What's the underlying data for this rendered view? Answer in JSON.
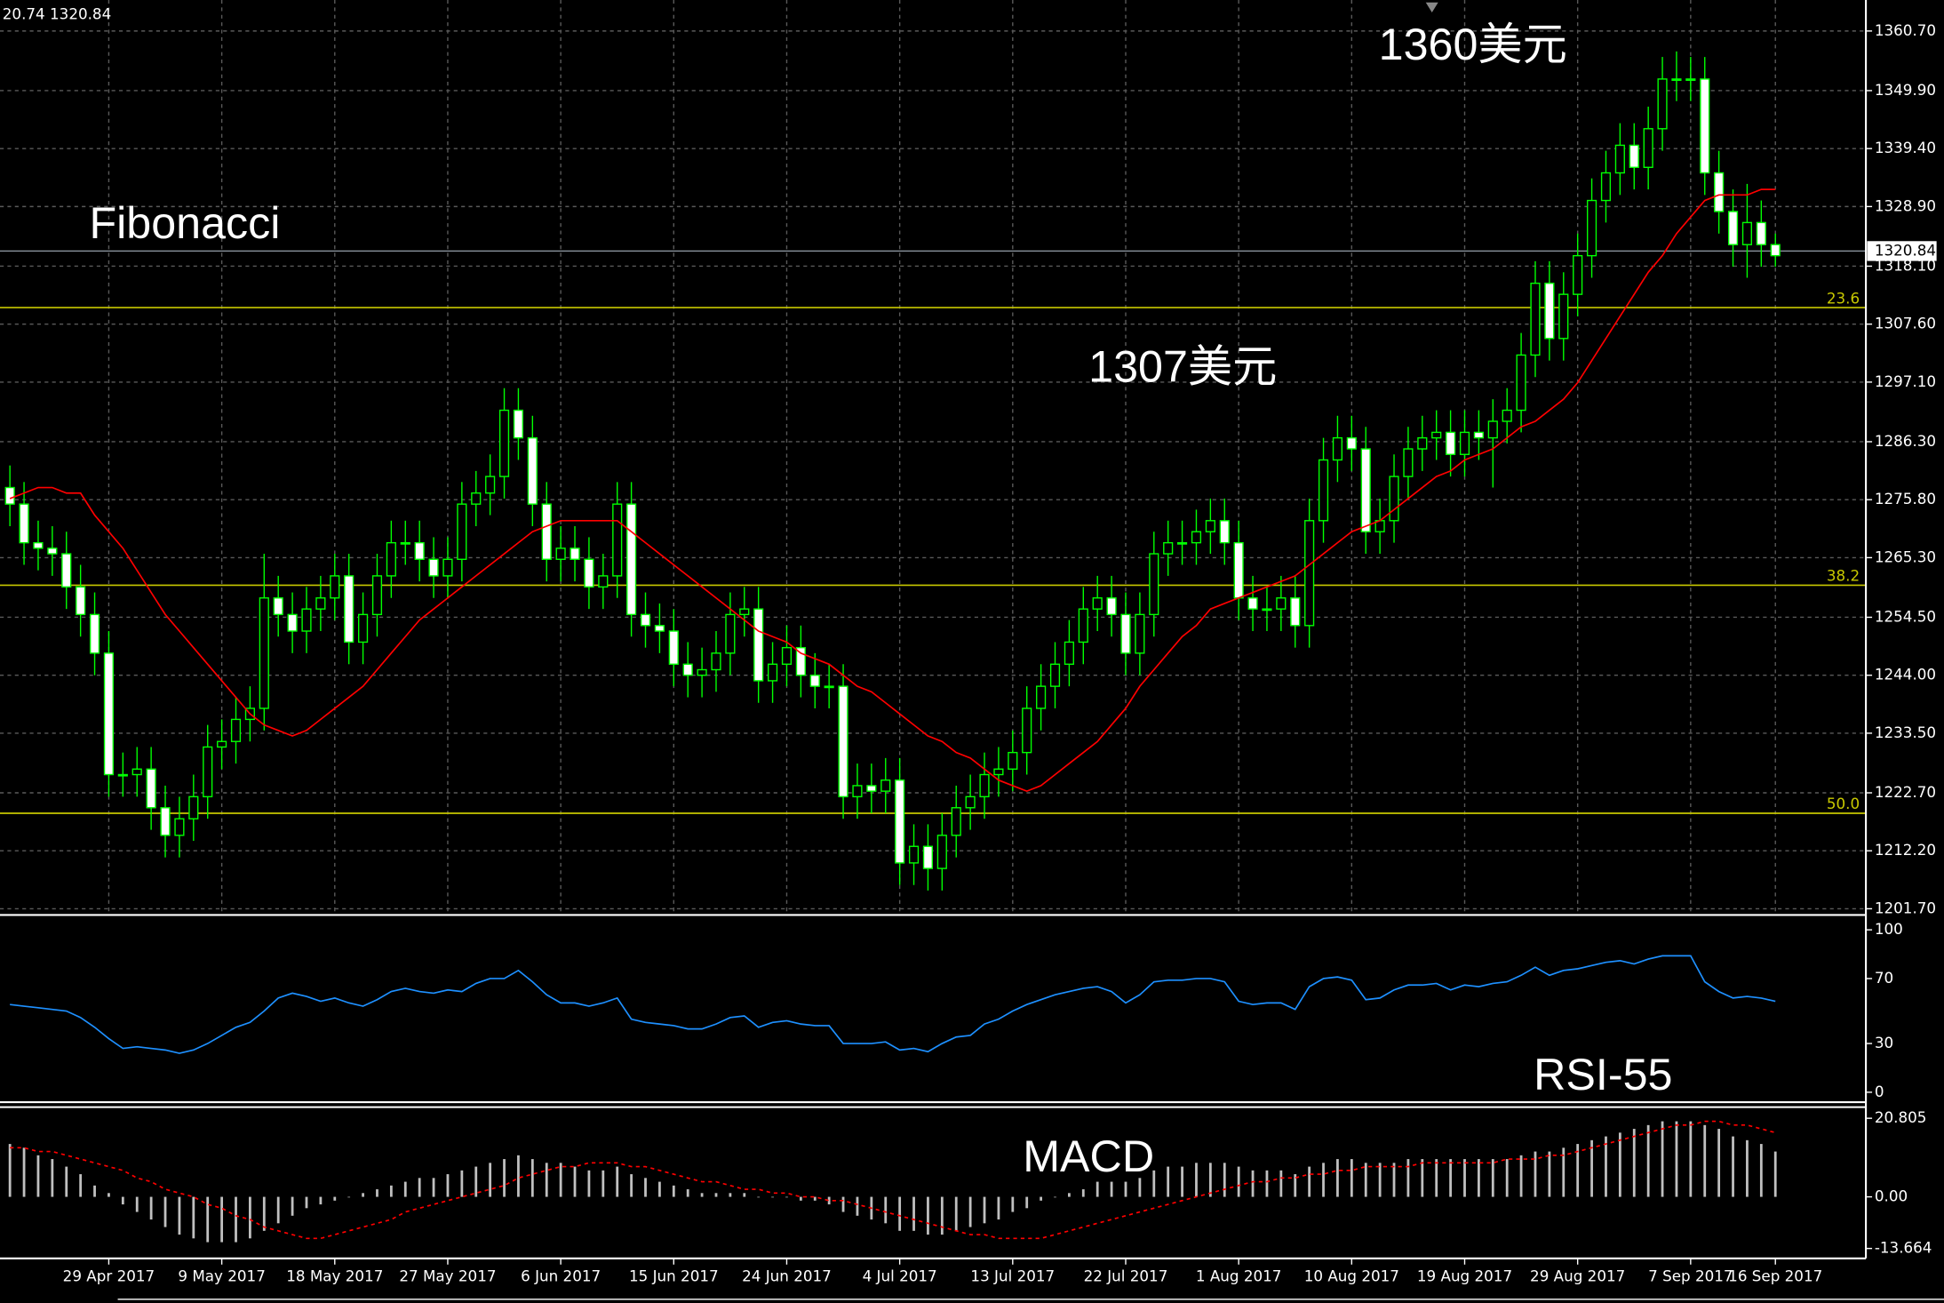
{
  "chart_data": [
    {
      "type": "candlestick",
      "header": "20.74 1320.84",
      "categories": [
        null,
        null,
        null,
        null,
        null,
        null,
        null,
        "29 Apr 2017",
        null,
        null,
        null,
        null,
        null,
        null,
        null,
        "9 May 2017",
        null,
        null,
        null,
        null,
        null,
        null,
        null,
        "18 May 2017",
        null,
        null,
        null,
        null,
        null,
        null,
        null,
        "27 May 2017",
        null,
        null,
        null,
        null,
        null,
        null,
        null,
        "6 Jun 2017",
        null,
        null,
        null,
        null,
        null,
        null,
        null,
        "15 Jun 2017",
        null,
        null,
        null,
        null,
        null,
        null,
        null,
        "24 Jun 2017",
        null,
        null,
        null,
        null,
        null,
        null,
        null,
        "4 Jul 2017",
        null,
        null,
        null,
        null,
        null,
        null,
        null,
        "13 Jul 2017",
        null,
        null,
        null,
        null,
        null,
        null,
        null,
        "22 Jul 2017",
        null,
        null,
        null,
        null,
        null,
        null,
        null,
        "1 Aug 2017",
        null,
        null,
        null,
        null,
        null,
        null,
        null,
        "10 Aug 2017",
        null,
        null,
        null,
        null,
        null,
        null,
        null,
        "19 Aug 2017",
        null,
        null,
        null,
        null,
        null,
        null,
        null,
        "29 Aug 2017",
        null,
        null,
        null,
        null,
        null,
        null,
        null,
        "7 Sep 2017",
        null,
        null,
        null,
        null,
        null,
        "16 Sep 2017"
      ],
      "open": [
        1278,
        1275,
        1268,
        1267,
        1266,
        1260,
        1255,
        1248,
        1226,
        1226,
        1227,
        1220,
        1215,
        1218,
        1222,
        1231,
        1232,
        1236,
        1238,
        1258,
        1255,
        1252,
        1256,
        1258,
        1262,
        1250,
        1255,
        1262,
        1268,
        1268,
        1265,
        1262,
        1265,
        1275,
        1277,
        1280,
        1292,
        1287,
        1275,
        1265,
        1267,
        1265,
        1260,
        1262,
        1275,
        1255,
        1253,
        1252,
        1246,
        1244,
        1245,
        1248,
        1255,
        1256,
        1243,
        1246,
        1249,
        1244,
        1242,
        1242,
        1222,
        1224,
        1223,
        1225,
        1210,
        1213,
        1209,
        1215,
        1220,
        1222,
        1226,
        1227,
        1230,
        1238,
        1242,
        1246,
        1250,
        1256,
        1258,
        1255,
        1248,
        1255,
        1266,
        1268,
        1268,
        1270,
        1272,
        1268,
        1258,
        1256,
        1256,
        1258,
        1253,
        1272,
        1283,
        1287,
        1285,
        1270,
        1272,
        1280,
        1285,
        1287,
        1288,
        1284,
        1288,
        1287,
        1290,
        1292,
        1302,
        1315,
        1305,
        1313,
        1320,
        1330,
        1335,
        1340,
        1336,
        1343,
        1352,
        1352,
        1352,
        1335,
        1328,
        1322,
        1326,
        1322
      ],
      "high": [
        1282,
        1279,
        1272,
        1271,
        1270,
        1264,
        1259,
        1252,
        1230,
        1231,
        1231,
        1224,
        1222,
        1226,
        1235,
        1236,
        1240,
        1242,
        1266,
        1262,
        1259,
        1260,
        1262,
        1266,
        1266,
        1259,
        1266,
        1272,
        1272,
        1272,
        1269,
        1269,
        1279,
        1281,
        1284,
        1296,
        1296,
        1291,
        1279,
        1271,
        1271,
        1269,
        1266,
        1279,
        1279,
        1259,
        1257,
        1256,
        1250,
        1249,
        1252,
        1259,
        1260,
        1260,
        1250,
        1253,
        1253,
        1248,
        1246,
        1246,
        1228,
        1228,
        1229,
        1229,
        1217,
        1217,
        1219,
        1224,
        1226,
        1230,
        1231,
        1234,
        1242,
        1246,
        1250,
        1254,
        1260,
        1262,
        1262,
        1259,
        1259,
        1270,
        1272,
        1272,
        1274,
        1276,
        1276,
        1272,
        1262,
        1260,
        1262,
        1262,
        1276,
        1287,
        1291,
        1291,
        1289,
        1276,
        1284,
        1289,
        1291,
        1292,
        1292,
        1292,
        1292,
        1294,
        1296,
        1306,
        1319,
        1319,
        1317,
        1324,
        1334,
        1339,
        1344,
        1344,
        1347,
        1356,
        1357,
        1356,
        1356,
        1339,
        1332,
        1333,
        1330,
        1324
      ],
      "low": [
        1271,
        1264,
        1263,
        1262,
        1256,
        1251,
        1244,
        1222,
        1222,
        1222,
        1216,
        1211,
        1211,
        1214,
        1218,
        1227,
        1228,
        1232,
        1234,
        1251,
        1248,
        1248,
        1252,
        1254,
        1246,
        1246,
        1251,
        1258,
        1264,
        1261,
        1258,
        1258,
        1261,
        1271,
        1273,
        1276,
        1283,
        1271,
        1261,
        1261,
        1261,
        1256,
        1256,
        1258,
        1251,
        1249,
        1248,
        1242,
        1240,
        1240,
        1241,
        1244,
        1251,
        1239,
        1239,
        1242,
        1240,
        1238,
        1238,
        1218,
        1218,
        1219,
        1219,
        1206,
        1206,
        1205,
        1205,
        1211,
        1216,
        1218,
        1222,
        1223,
        1226,
        1234,
        1238,
        1242,
        1246,
        1252,
        1251,
        1244,
        1244,
        1251,
        1262,
        1264,
        1264,
        1266,
        1264,
        1254,
        1252,
        1252,
        1252,
        1249,
        1249,
        1268,
        1279,
        1281,
        1266,
        1266,
        1268,
        1276,
        1281,
        1283,
        1280,
        1280,
        1283,
        1278,
        1286,
        1288,
        1298,
        1301,
        1301,
        1309,
        1316,
        1326,
        1331,
        1332,
        1332,
        1339,
        1348,
        1348,
        1331,
        1324,
        1318,
        1316,
        1318,
        1318
      ],
      "close": [
        1275,
        1268,
        1267,
        1266,
        1260,
        1255,
        1248,
        1226,
        1226,
        1227,
        1220,
        1215,
        1218,
        1222,
        1231,
        1232,
        1236,
        1238,
        1258,
        1255,
        1252,
        1256,
        1258,
        1262,
        1250,
        1255,
        1262,
        1268,
        1268,
        1265,
        1262,
        1265,
        1275,
        1277,
        1280,
        1292,
        1287,
        1275,
        1265,
        1267,
        1265,
        1260,
        1262,
        1275,
        1255,
        1253,
        1252,
        1246,
        1244,
        1245,
        1248,
        1255,
        1256,
        1243,
        1246,
        1249,
        1244,
        1242,
        1242,
        1222,
        1224,
        1223,
        1225,
        1210,
        1213,
        1209,
        1215,
        1220,
        1222,
        1226,
        1227,
        1230,
        1238,
        1242,
        1246,
        1250,
        1256,
        1258,
        1255,
        1248,
        1255,
        1266,
        1268,
        1268,
        1270,
        1272,
        1268,
        1258,
        1256,
        1256,
        1258,
        1253,
        1272,
        1283,
        1287,
        1285,
        1270,
        1272,
        1280,
        1285,
        1287,
        1288,
        1284,
        1288,
        1287,
        1290,
        1292,
        1302,
        1315,
        1305,
        1313,
        1320,
        1330,
        1335,
        1340,
        1336,
        1343,
        1352,
        1352,
        1352,
        1335,
        1328,
        1322,
        1326,
        1322,
        1320
      ],
      "candle_color": "#00ff00",
      "bull_body": "#000000",
      "bear_body": "#ffffff",
      "ma": {
        "color": "#ff0000",
        "values": [
          1276,
          1277,
          1278,
          1278,
          1277,
          1277,
          1273,
          1270,
          1267,
          1263,
          1259,
          1255,
          1252,
          1249,
          1246,
          1243,
          1240,
          1237,
          1235,
          1234,
          1233,
          1234,
          1236,
          1238,
          1240,
          1242,
          1245,
          1248,
          1251,
          1254,
          1256,
          1258,
          1260,
          1262,
          1264,
          1266,
          1268,
          1270,
          1271,
          1272,
          1272,
          1272,
          1272,
          1272,
          1270,
          1268,
          1266,
          1264,
          1262,
          1260,
          1258,
          1256,
          1254,
          1252,
          1251,
          1250,
          1248,
          1247,
          1246,
          1244,
          1242,
          1241,
          1239,
          1237,
          1235,
          1233,
          1232,
          1230,
          1229,
          1227,
          1225,
          1224,
          1223,
          1224,
          1226,
          1228,
          1230,
          1232,
          1235,
          1238,
          1242,
          1245,
          1248,
          1251,
          1253,
          1256,
          1257,
          1258,
          1259,
          1260,
          1261,
          1262,
          1264,
          1266,
          1268,
          1270,
          1271,
          1272,
          1274,
          1276,
          1278,
          1280,
          1281,
          1283,
          1284,
          1285,
          1287,
          1289,
          1290,
          1292,
          1294,
          1297,
          1301,
          1305,
          1309,
          1313,
          1317,
          1320,
          1324,
          1327,
          1330,
          1331,
          1331,
          1331,
          1332,
          1332
        ]
      },
      "ylim": [
        1201.7,
        1360.7
      ],
      "yticks": [
        {
          "value": 1201.7,
          "label": "1201.70"
        },
        {
          "value": 1212.2,
          "label": "1212.20"
        },
        {
          "value": 1222.7,
          "label": "1222.70"
        },
        {
          "value": 1233.5,
          "label": "1233.50"
        },
        {
          "value": 1244,
          "label": "1244.00"
        },
        {
          "value": 1254.5,
          "label": "1254.50"
        },
        {
          "value": 1265.3,
          "label": "1265.30"
        },
        {
          "value": 1275.8,
          "label": "1275.80"
        },
        {
          "value": 1286.3,
          "label": "1286.30"
        },
        {
          "value": 1297.1,
          "label": "1297.10"
        },
        {
          "value": 1307.6,
          "label": "1307.60"
        },
        {
          "value": 1318.1,
          "label": "1318.10"
        },
        {
          "value": 1328.9,
          "label": "1328.90"
        },
        {
          "value": 1339.4,
          "label": "1339.40"
        },
        {
          "value": 1349.9,
          "label": "1349.90"
        },
        {
          "value": 1360.7,
          "label": "1360.70"
        }
      ],
      "grid": true,
      "grid_color": "#5a5a5a",
      "current_price": 1320.84,
      "current_price_color": "#8c96a0",
      "fib_color": "#c8c800",
      "fib_levels": [
        {
          "label": "23.6",
          "price": 1310.6
        },
        {
          "label": "38.2",
          "price": 1260.3
        },
        {
          "label": "50.0",
          "price": 1219.0
        }
      ],
      "annotations": [
        "Fibonacci",
        "1360美元",
        "1307美元"
      ]
    },
    {
      "type": "line",
      "color": "#1e90ff",
      "values": [
        54,
        53,
        52,
        51,
        50,
        46,
        40,
        33,
        27,
        28,
        27,
        26,
        24,
        26,
        30,
        35,
        40,
        43,
        50,
        58,
        61,
        59,
        56,
        58,
        55,
        53,
        57,
        62,
        64,
        62,
        61,
        63,
        62,
        67,
        70,
        70,
        75,
        68,
        60,
        55,
        55,
        53,
        55,
        58,
        45,
        43,
        42,
        41,
        39,
        39,
        42,
        46,
        47,
        40,
        43,
        44,
        42,
        41,
        41,
        30,
        30,
        30,
        31,
        26,
        27,
        25,
        30,
        34,
        35,
        42,
        45,
        50,
        54,
        57,
        60,
        62,
        64,
        65,
        62,
        55,
        60,
        68,
        69,
        69,
        70,
        70,
        68,
        56,
        54,
        55,
        55,
        51,
        65,
        70,
        71,
        69,
        57,
        58,
        63,
        66,
        66,
        67,
        63,
        66,
        65,
        67,
        68,
        72,
        77,
        72,
        75,
        76,
        78,
        80,
        81,
        79,
        82,
        84,
        84,
        84,
        68,
        62,
        58,
        59,
        58,
        56
      ],
      "ylim": [
        0,
        100
      ],
      "yticks": [
        0,
        30,
        70,
        100
      ],
      "annotation": "RSI-55"
    },
    {
      "type": "macd",
      "histogram": {
        "color": "#c0c0c0",
        "values": [
          14,
          13,
          11,
          10,
          8,
          6,
          3,
          1,
          -2,
          -4,
          -6,
          -8,
          -10,
          -11,
          -12,
          -12,
          -12,
          -11,
          -9,
          -7,
          -5,
          -3,
          -2,
          -1,
          0,
          1,
          2,
          3,
          4,
          5,
          5,
          6,
          7,
          8,
          9,
          10,
          11,
          10,
          9,
          9,
          8,
          7,
          7,
          8,
          6,
          5,
          4,
          3,
          2,
          1,
          1,
          1,
          1,
          0,
          0,
          0,
          -1,
          -1,
          -2,
          -4,
          -5,
          -6,
          -7,
          -9,
          -9,
          -10,
          -10,
          -9,
          -8,
          -7,
          -6,
          -4,
          -3,
          -1,
          0,
          1,
          2,
          4,
          4,
          4,
          5,
          7,
          8,
          8,
          9,
          9,
          9,
          8,
          7,
          7,
          7,
          6,
          8,
          9,
          10,
          10,
          9,
          9,
          9,
          10,
          10,
          10,
          10,
          10,
          10,
          10,
          10,
          11,
          12,
          12,
          13,
          14,
          15,
          16,
          17,
          18,
          19,
          20,
          20,
          20,
          19,
          18,
          16,
          15,
          14,
          12
        ]
      },
      "signal": {
        "color": "#ff0000",
        "values": [
          13,
          13,
          12,
          12,
          11,
          10,
          9,
          8,
          7,
          5,
          4,
          2,
          1,
          0,
          -2,
          -3,
          -5,
          -6,
          -8,
          -9,
          -10,
          -11,
          -11,
          -10,
          -9,
          -8,
          -7,
          -6,
          -4,
          -3,
          -2,
          -1,
          0,
          1,
          2,
          3,
          5,
          6,
          7,
          8,
          8,
          9,
          9,
          9,
          8,
          8,
          7,
          6,
          5,
          4,
          4,
          3,
          2,
          2,
          1,
          1,
          0,
          0,
          -1,
          -1,
          -2,
          -3,
          -4,
          -5,
          -6,
          -7,
          -8,
          -9,
          -10,
          -10,
          -11,
          -11,
          -11,
          -11,
          -10,
          -9,
          -8,
          -7,
          -6,
          -5,
          -4,
          -3,
          -2,
          -1,
          0,
          1,
          2,
          3,
          4,
          4,
          5,
          5,
          6,
          6,
          7,
          7,
          8,
          8,
          8,
          8,
          9,
          9,
          9,
          9,
          9,
          9,
          10,
          10,
          10,
          11,
          11,
          12,
          13,
          14,
          15,
          16,
          17,
          18,
          19,
          19,
          20,
          20,
          19,
          19,
          18,
          17
        ]
      },
      "ylim": [
        -13.664,
        20.805
      ],
      "yticks": [
        -13.664,
        {
          "value": 0,
          "label": "0.00"
        },
        20.805
      ],
      "annotation": "MACD"
    }
  ]
}
